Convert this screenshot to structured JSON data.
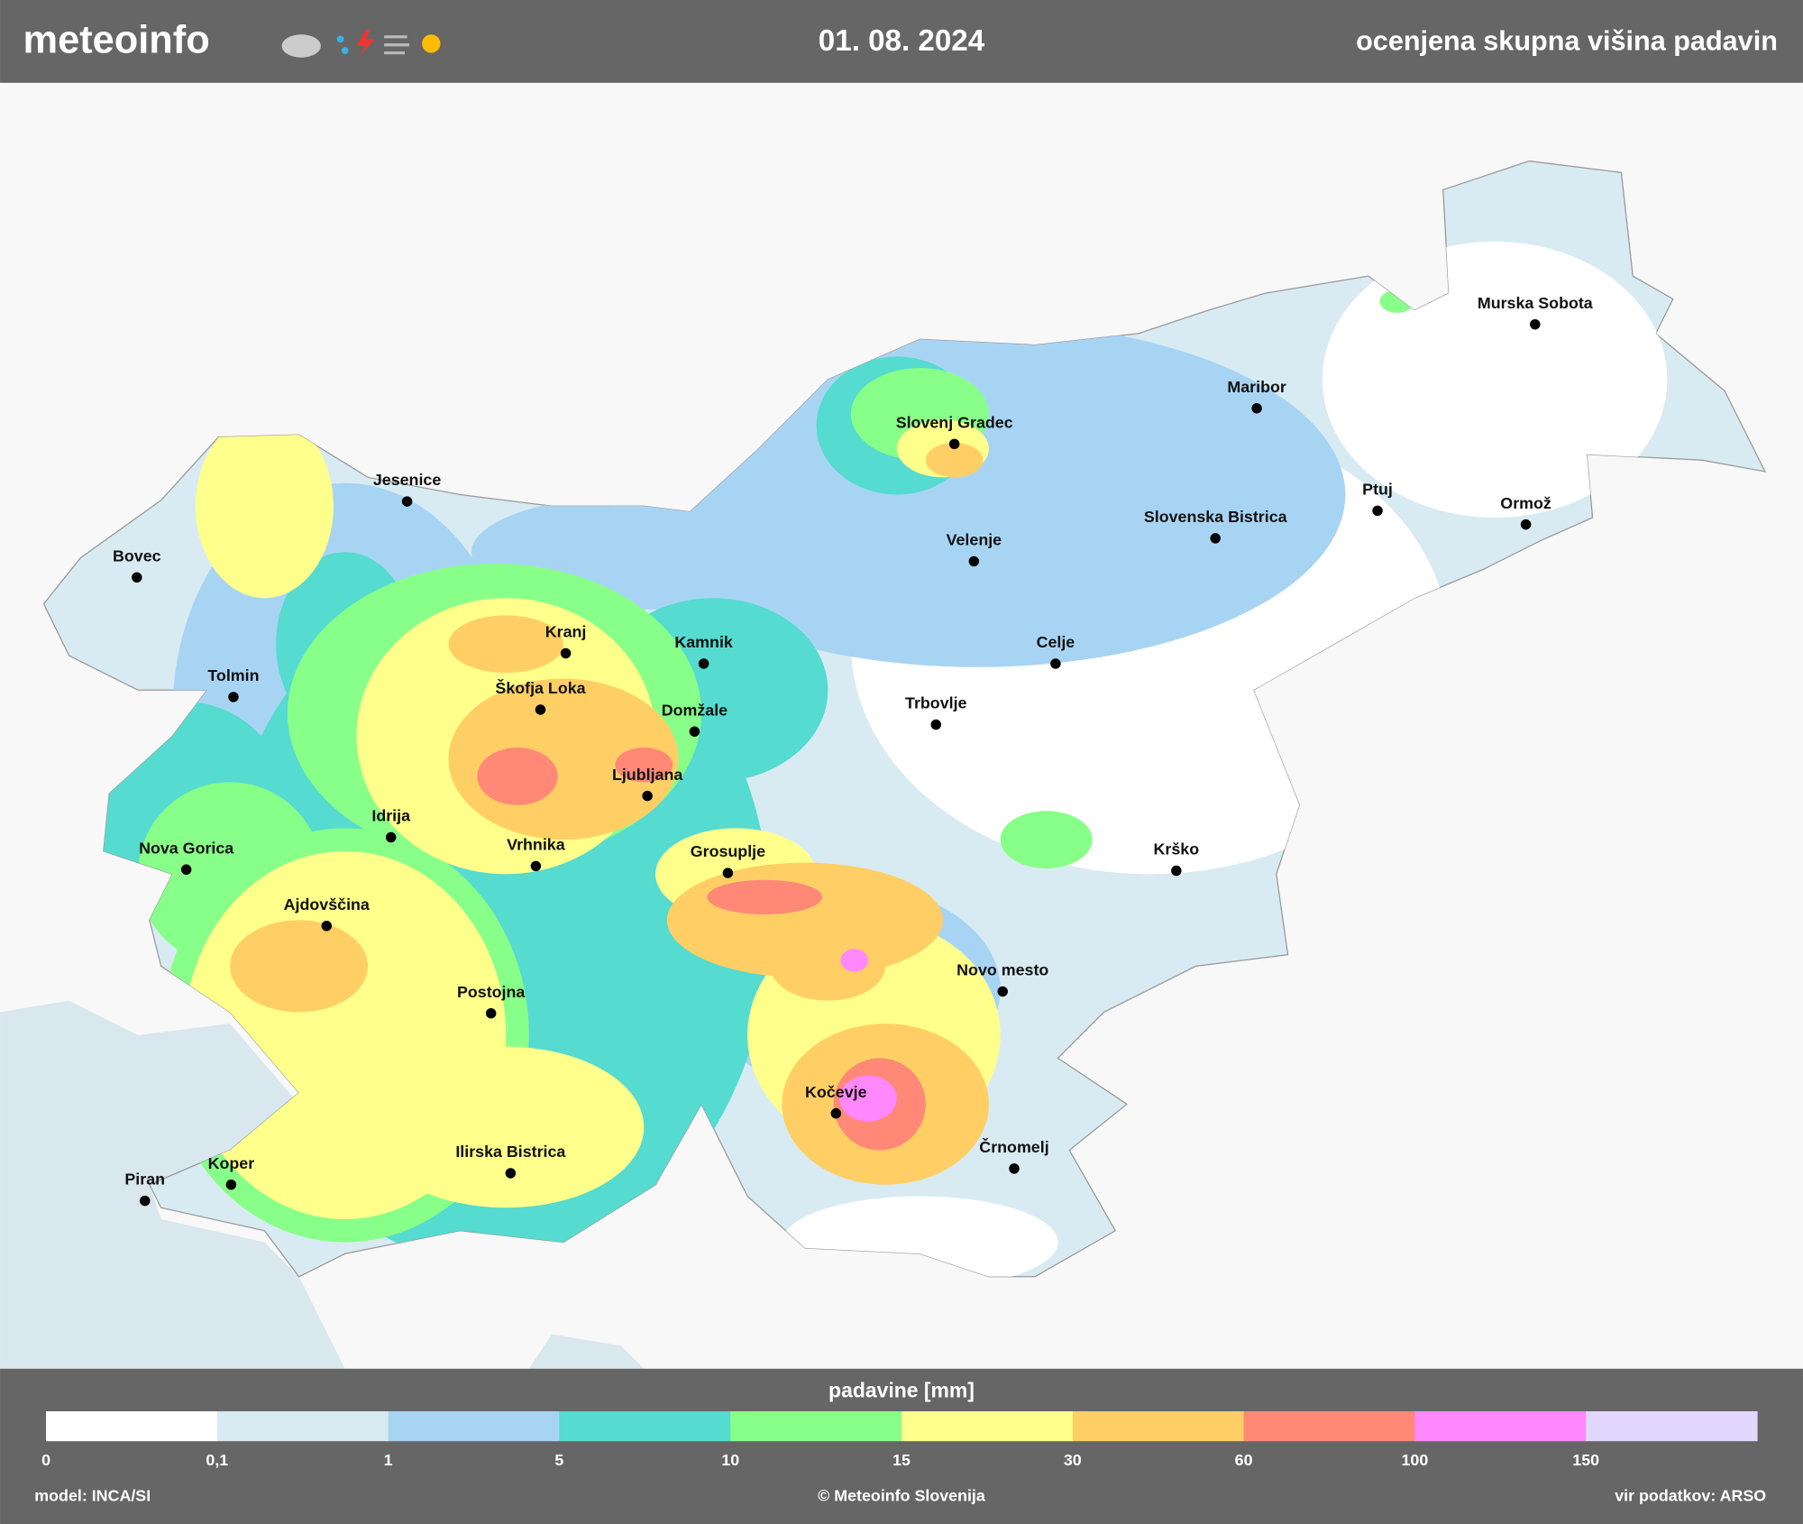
{
  "header": {
    "brand": "meteoinfo",
    "date": "01. 08. 2024",
    "title": "ocenjena skupna višina padavin"
  },
  "map": {
    "cities": [
      "Murska Sobota",
      "Maribor",
      "Slovenj Gradec",
      "Ptuj",
      "Ormož",
      "Jesenice",
      "Slovenska Bistrica",
      "Velenje",
      "Bovec",
      "Kranj",
      "Kamnik",
      "Celje",
      "Tolmin",
      "Škofja Loka",
      "Domžale",
      "Trbovlje",
      "Ljubljana",
      "Idrija",
      "Vrhnika",
      "Nova Gorica",
      "Grosuplje",
      "Krško",
      "Ajdovščina",
      "Novo mesto",
      "Postojna",
      "Kočevje",
      "Črnomelj",
      "Ilirska Bistrica",
      "Koper",
      "Piran"
    ]
  },
  "legend": {
    "title": "padavine [mm]",
    "ticks": [
      "0",
      "0,1",
      "1",
      "5",
      "10",
      "15",
      "30",
      "60",
      "100",
      "150"
    ],
    "colors": [
      "#ffffff",
      "#d8ebf2",
      "#a8d4f4",
      "#55dbd0",
      "#88ff88",
      "#ffff8c",
      "#ffcf66",
      "#ff8877",
      "#ff88ff",
      "#e2d8ff"
    ]
  },
  "footer": {
    "model": "model: INCA/SI",
    "copyright": "© Meteoinfo Slovenija",
    "source": "vir podatkov: ARSO"
  }
}
